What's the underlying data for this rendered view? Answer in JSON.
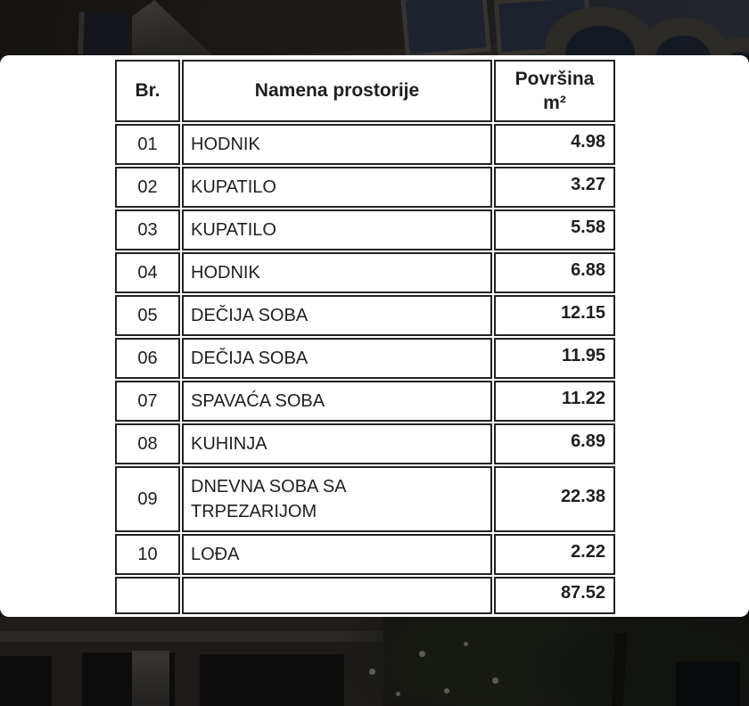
{
  "colors": {
    "card_background": "#ffffff",
    "table_border": "#232323",
    "text": "#1f1f1f",
    "photo_dark": "#171513"
  },
  "table": {
    "headers": {
      "number": "Br.",
      "name": "Namena prostorije",
      "area_line1": "Površina",
      "area_line2": "m²"
    },
    "rows": [
      {
        "number": "01",
        "name": "HODNIK",
        "area": "4.98"
      },
      {
        "number": "02",
        "name": "KUPATILO",
        "area": "3.27"
      },
      {
        "number": "03",
        "name": "KUPATILO",
        "area": "5.58"
      },
      {
        "number": "04",
        "name": "HODNIK",
        "area": "6.88"
      },
      {
        "number": "05",
        "name": "DEČIJA SOBA",
        "area": "12.15"
      },
      {
        "number": "06",
        "name": "DEČIJA SOBA",
        "area": "11.95"
      },
      {
        "number": "07",
        "name": "SPAVAĆA SOBA",
        "area": "11.22"
      },
      {
        "number": "08",
        "name": "KUHINJA",
        "area": "6.89"
      },
      {
        "number": "09",
        "name": "DNEVNA SOBA SA\nTRPEZARIJOM",
        "area": "22.38"
      },
      {
        "number": "10",
        "name": "LOĐA",
        "area": "2.22"
      }
    ],
    "total": {
      "number": "",
      "name": "",
      "area": "87.52"
    }
  }
}
